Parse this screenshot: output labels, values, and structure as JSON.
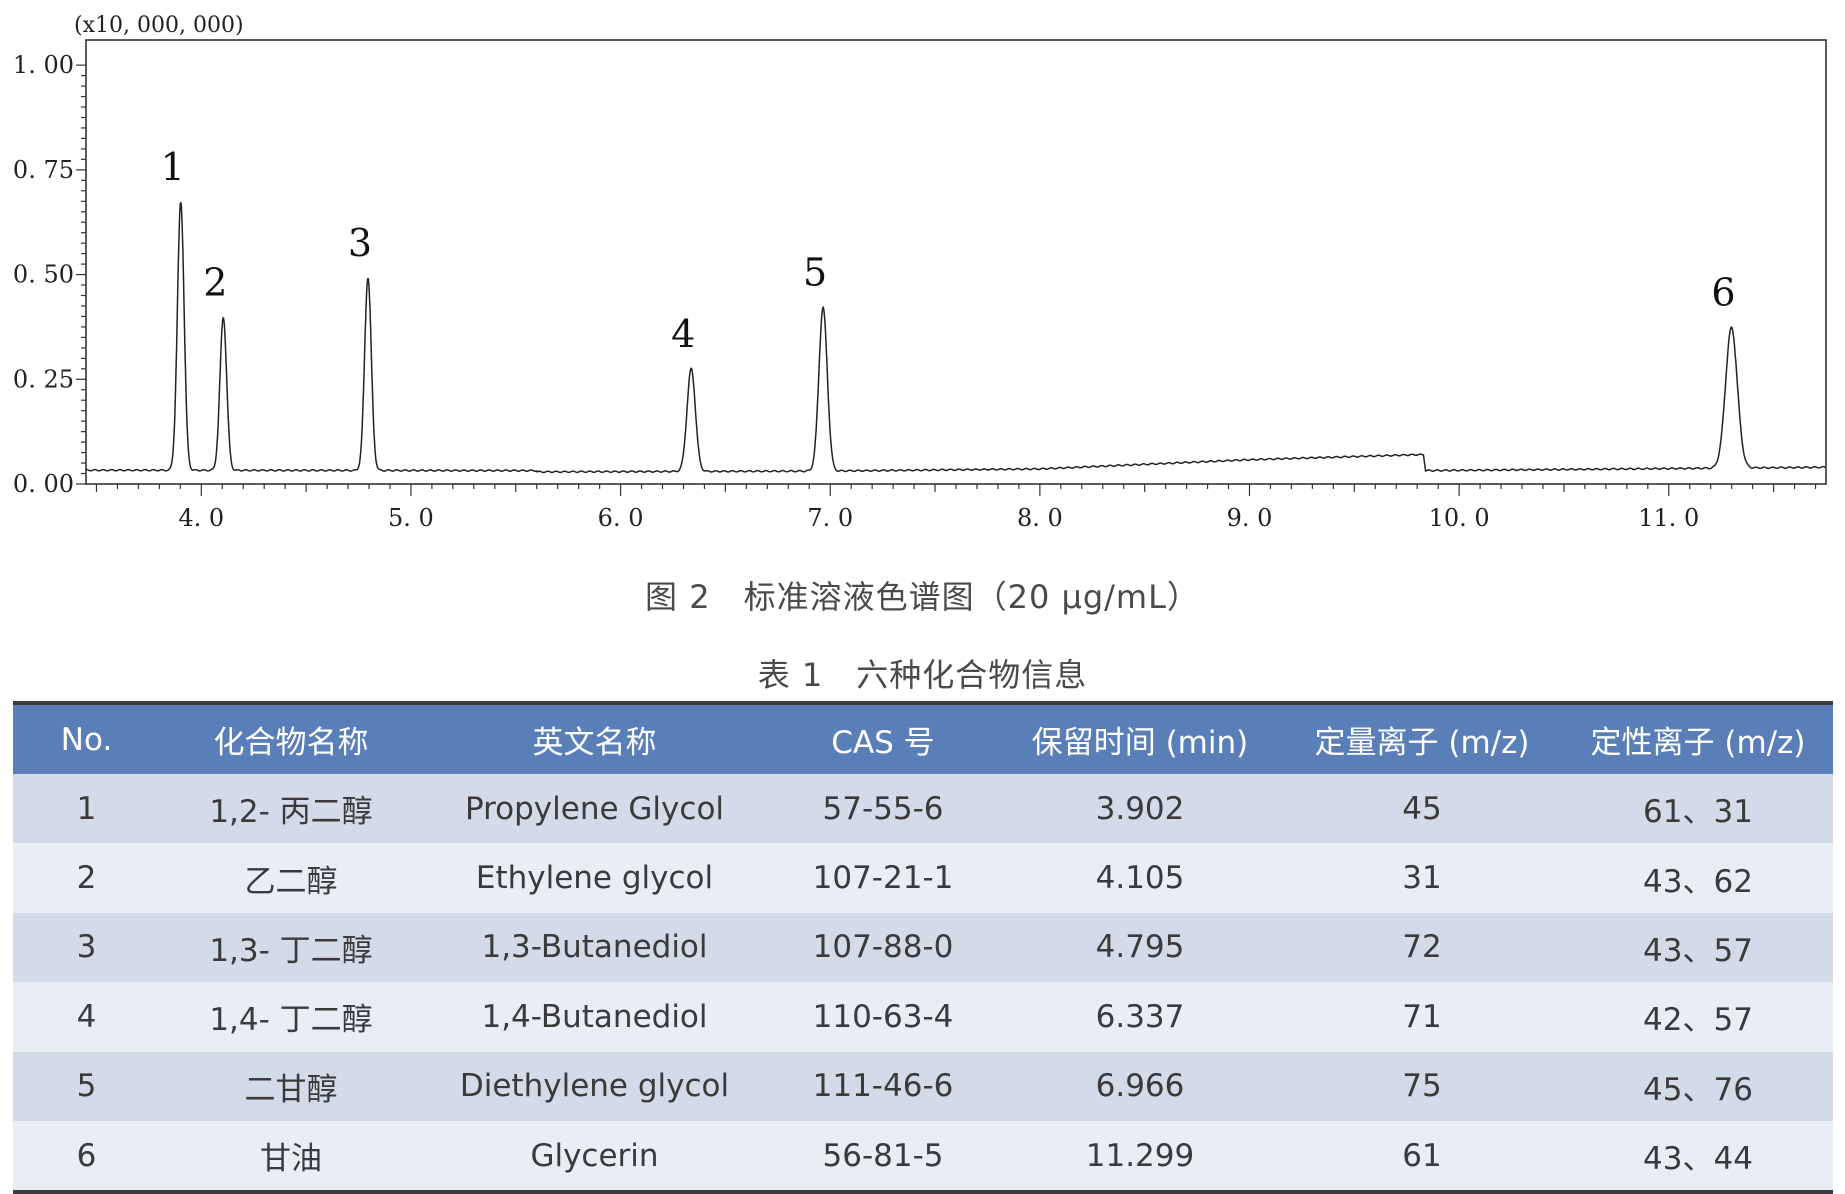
{
  "chart_data": {
    "type": "line",
    "multiplier_label": "(x10, 000, 000)",
    "x_ticks": [
      "4. 0",
      "5. 0",
      "6. 0",
      "7. 0",
      "8. 0",
      "9. 0",
      "10. 0",
      "11. 0"
    ],
    "x_tick_values": [
      4,
      5,
      6,
      7,
      8,
      9,
      10,
      11
    ],
    "y_ticks": [
      "0. 00",
      "0. 25",
      "0. 50",
      "0. 75",
      "1. 00"
    ],
    "y_tick_values": [
      0,
      0.25,
      0.5,
      0.75,
      1.0
    ],
    "xlim": [
      3.45,
      11.75
    ],
    "ylim": [
      0,
      1.06
    ],
    "baseline": [
      [
        3.45,
        0.033
      ],
      [
        5.6,
        0.032
      ],
      [
        5.6,
        0.029
      ],
      [
        7.0,
        0.031
      ],
      [
        8.0,
        0.036
      ],
      [
        9.0,
        0.058
      ],
      [
        9.8,
        0.07
      ],
      [
        9.83,
        0.07
      ],
      [
        9.84,
        0.032
      ],
      [
        11.75,
        0.04
      ]
    ],
    "peaks": [
      {
        "label": "1",
        "x": 3.902,
        "height": 0.64
      },
      {
        "label": "2",
        "x": 4.105,
        "height": 0.365
      },
      {
        "label": "3",
        "x": 4.795,
        "height": 0.46
      },
      {
        "label": "4",
        "x": 6.337,
        "height": 0.245
      },
      {
        "label": "5",
        "x": 6.966,
        "height": 0.39
      },
      {
        "label": "6",
        "x": 11.299,
        "height": 0.335
      }
    ]
  },
  "figure_caption": "图 2　标准溶液色谱图（20 μg/mL）",
  "table_caption": "表 1　六种化合物信息",
  "table": {
    "headers": [
      "No.",
      "化合物名称",
      "英文名称",
      "CAS 号",
      "保留时间 (min)",
      "定量离子 (m/z)",
      "定性离子 (m/z)"
    ],
    "rows": [
      [
        "1",
        "1,2- 丙二醇",
        "Propylene Glycol",
        "57-55-6",
        "3.902",
        "45",
        "61、31"
      ],
      [
        "2",
        "乙二醇",
        "Ethylene glycol",
        "107-21-1",
        "4.105",
        "31",
        "43、62"
      ],
      [
        "3",
        "1,3- 丁二醇",
        "1,3-Butanediol",
        "107-88-0",
        "4.795",
        "72",
        "43、57"
      ],
      [
        "4",
        "1,4- 丁二醇",
        "1,4-Butanediol",
        "110-63-4",
        "6.337",
        "71",
        "42、57"
      ],
      [
        "5",
        "二甘醇",
        "Diethylene glycol",
        "111-46-6",
        "6.966",
        "75",
        "45、76"
      ],
      [
        "6",
        "甘油",
        "Glycerin",
        "56-81-5",
        "11.299",
        "61",
        "43、44"
      ]
    ]
  }
}
